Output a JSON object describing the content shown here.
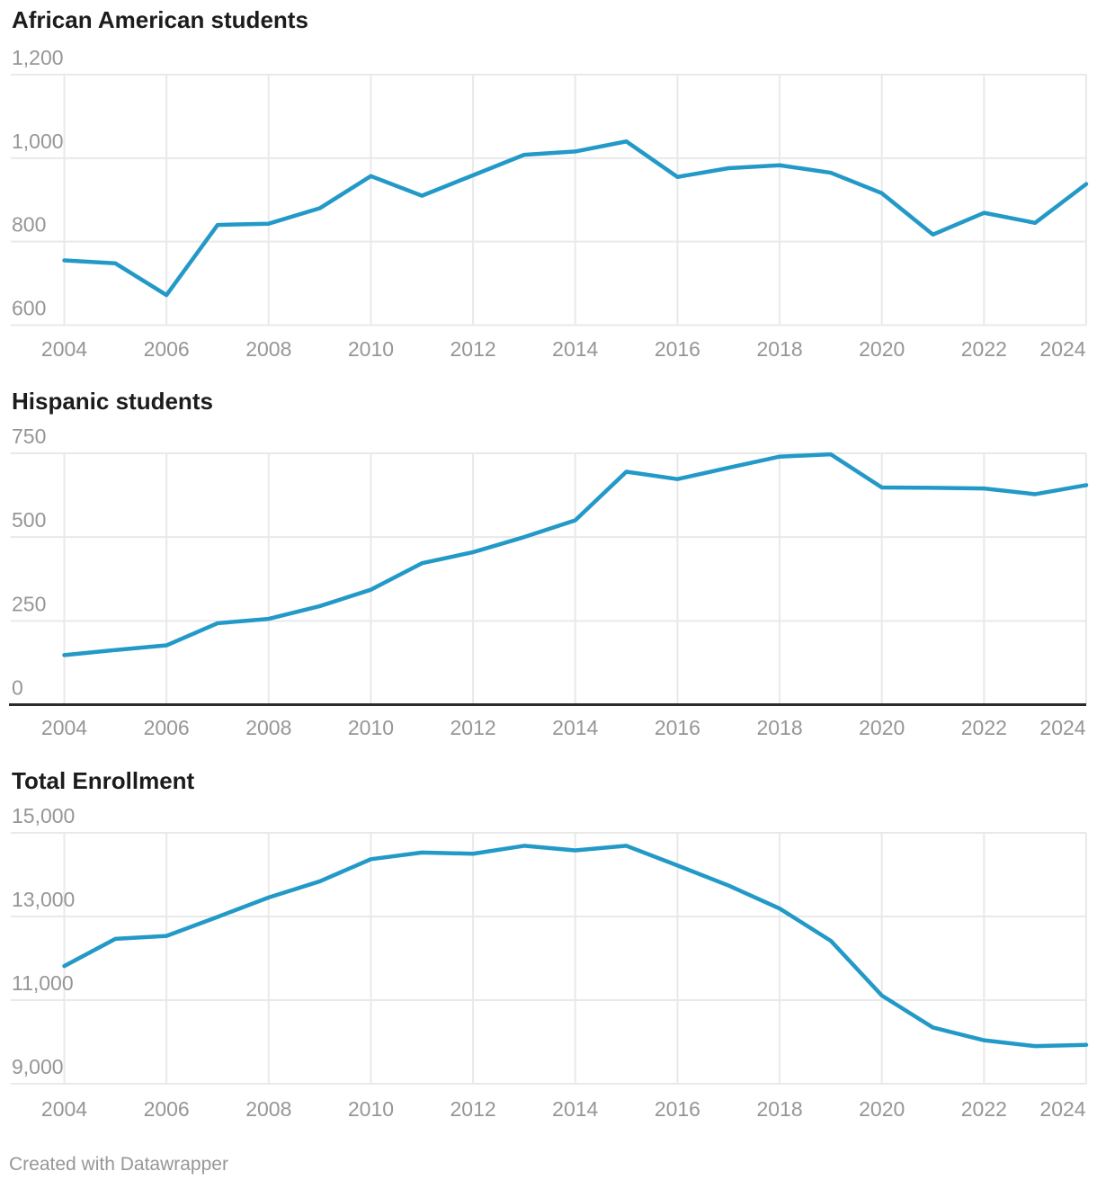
{
  "page": {
    "footer": {
      "attribution_text": "Created with Datawrapper"
    }
  },
  "style": {
    "line_color": "#2299c7",
    "grid_color": "#e9e9e9",
    "axis_line_color": "#2b2b2b",
    "tick_label_color": "#969696",
    "title_color": "#1c1c1c",
    "footer_color": "#979797",
    "background": "#ffffff"
  },
  "chart_data": [
    {
      "type": "line",
      "title": "African American students",
      "x": [
        2004,
        2005,
        2006,
        2007,
        2008,
        2009,
        2010,
        2011,
        2012,
        2013,
        2014,
        2015,
        2016,
        2017,
        2018,
        2019,
        2020,
        2021,
        2022,
        2023,
        2024
      ],
      "values": [
        755,
        748,
        672,
        840,
        843,
        880,
        957,
        910,
        959,
        1008,
        1016,
        1040,
        955,
        976,
        983,
        965,
        916,
        817,
        869,
        845,
        938
      ],
      "ylim": [
        600,
        1200
      ],
      "yticks": [
        600,
        800,
        1000,
        1200
      ],
      "ytick_labels": [
        "600",
        "800",
        "1,000",
        "1,200"
      ],
      "xticks": [
        2004,
        2006,
        2008,
        2010,
        2012,
        2014,
        2016,
        2018,
        2020,
        2022,
        2024
      ],
      "grid": true,
      "legend": "none",
      "zero_baseline": false
    },
    {
      "type": "line",
      "title": "Hispanic students",
      "x": [
        2004,
        2005,
        2006,
        2007,
        2008,
        2009,
        2010,
        2011,
        2012,
        2013,
        2014,
        2015,
        2016,
        2017,
        2018,
        2019,
        2020,
        2021,
        2022,
        2023,
        2024
      ],
      "values": [
        148,
        163,
        177,
        243,
        256,
        294,
        343,
        422,
        455,
        500,
        550,
        695,
        673,
        707,
        740,
        747,
        648,
        647,
        645,
        628,
        655
      ],
      "ylim": [
        0,
        750
      ],
      "yticks": [
        0,
        250,
        500,
        750
      ],
      "ytick_labels": [
        "0",
        "250",
        "500",
        "750"
      ],
      "xticks": [
        2004,
        2006,
        2008,
        2010,
        2012,
        2014,
        2016,
        2018,
        2020,
        2022,
        2024
      ],
      "grid": true,
      "legend": "none",
      "zero_baseline": true
    },
    {
      "type": "line",
      "title": "Total Enrollment",
      "x": [
        2004,
        2005,
        2006,
        2007,
        2008,
        2009,
        2010,
        2011,
        2012,
        2013,
        2014,
        2015,
        2016,
        2017,
        2018,
        2019,
        2020,
        2021,
        2022,
        2023,
        2024
      ],
      "values": [
        11815,
        12465,
        12535,
        12990,
        13455,
        13840,
        14370,
        14530,
        14500,
        14690,
        14580,
        14690,
        14220,
        13740,
        13190,
        12420,
        11110,
        10345,
        10040,
        9900,
        9930
      ],
      "ylim": [
        9000,
        15000
      ],
      "yticks": [
        9000,
        11000,
        13000,
        15000
      ],
      "ytick_labels": [
        "9,000",
        "11,000",
        "13,000",
        "15,000"
      ],
      "xticks": [
        2004,
        2006,
        2008,
        2010,
        2012,
        2014,
        2016,
        2018,
        2020,
        2022,
        2024
      ],
      "grid": true,
      "legend": "none",
      "zero_baseline": false
    }
  ]
}
